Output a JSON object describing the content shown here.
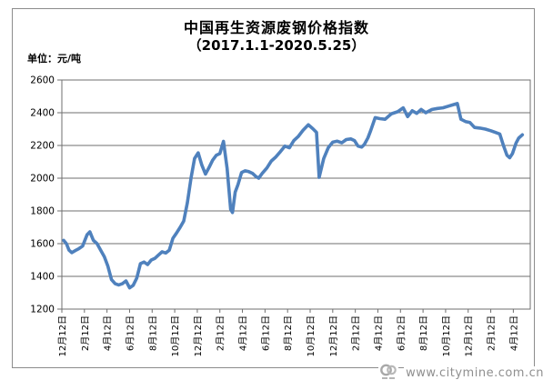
{
  "title": "中国再生资源废钢价格指数",
  "subtitle": "（2017.1.1-2020.5.25）",
  "unit_label": "单位：元/吨",
  "watermark": {
    "url_text": "www.citymine.com.cn",
    "logo_name": "citymine-logo"
  },
  "colors": {
    "line": "#4F81BD",
    "grid": "#6f6f6f",
    "plot_border": "#6f6f6f",
    "figure_border": "#8c8c8c",
    "axis_text": "#000000",
    "watermark_text": "#8f8f8f"
  },
  "chart_data": {
    "type": "line",
    "title": "中国再生资源废钢价格指数（2017.1.1-2020.5.25）",
    "xlabel": "",
    "ylabel": "元/吨",
    "ylim": [
      1200,
      2600
    ],
    "y_ticks": [
      1200,
      1400,
      1600,
      1800,
      2000,
      2200,
      2400,
      2600
    ],
    "grid": true,
    "legend": false,
    "x_range_months": [
      0,
      41.5
    ],
    "x_tick_months": [
      0,
      2,
      4,
      6,
      8,
      10,
      12,
      14,
      16,
      18,
      20,
      22,
      24,
      26,
      28,
      30,
      32,
      34,
      36,
      38,
      40
    ],
    "x_tick_labels": [
      "12月12日",
      "2月12日",
      "4月12日",
      "6月12日",
      "8月12日",
      "10月12日",
      "12月12日",
      "2月12日",
      "4月12日",
      "6月12日",
      "8月12日",
      "10月12日",
      "12月12日",
      "2月12日",
      "4月12日",
      "6月12日",
      "8月12日",
      "10月12日",
      "12月12日",
      "2月12日",
      "4月12日"
    ],
    "series": [
      {
        "name": "废钢价格指数",
        "points": [
          [
            0.16,
            1620
          ],
          [
            0.4,
            1600
          ],
          [
            0.64,
            1560
          ],
          [
            0.88,
            1545
          ],
          [
            1.2,
            1558
          ],
          [
            1.52,
            1570
          ],
          [
            1.84,
            1585
          ],
          [
            2.24,
            1655
          ],
          [
            2.48,
            1672
          ],
          [
            2.8,
            1620
          ],
          [
            3.12,
            1600
          ],
          [
            3.44,
            1560
          ],
          [
            3.76,
            1520
          ],
          [
            4.08,
            1462
          ],
          [
            4.4,
            1380
          ],
          [
            4.72,
            1355
          ],
          [
            5.04,
            1348
          ],
          [
            5.36,
            1355
          ],
          [
            5.68,
            1372
          ],
          [
            6.0,
            1330
          ],
          [
            6.32,
            1345
          ],
          [
            6.64,
            1390
          ],
          [
            6.96,
            1478
          ],
          [
            7.28,
            1488
          ],
          [
            7.6,
            1472
          ],
          [
            7.92,
            1500
          ],
          [
            8.24,
            1510
          ],
          [
            8.56,
            1530
          ],
          [
            8.88,
            1550
          ],
          [
            9.2,
            1543
          ],
          [
            9.52,
            1560
          ],
          [
            9.84,
            1633
          ],
          [
            10.16,
            1665
          ],
          [
            10.48,
            1700
          ],
          [
            10.8,
            1738
          ],
          [
            11.12,
            1850
          ],
          [
            11.44,
            2000
          ],
          [
            11.76,
            2120
          ],
          [
            12.08,
            2155
          ],
          [
            12.4,
            2080
          ],
          [
            12.72,
            2025
          ],
          [
            13.04,
            2065
          ],
          [
            13.36,
            2110
          ],
          [
            13.68,
            2140
          ],
          [
            14.0,
            2150
          ],
          [
            14.32,
            2225
          ],
          [
            14.64,
            2060
          ],
          [
            14.96,
            1810
          ],
          [
            15.12,
            1790
          ],
          [
            15.36,
            1915
          ],
          [
            15.6,
            1960
          ],
          [
            15.92,
            2035
          ],
          [
            16.24,
            2045
          ],
          [
            16.56,
            2040
          ],
          [
            16.88,
            2030
          ],
          [
            17.2,
            2010
          ],
          [
            17.44,
            2000
          ],
          [
            17.76,
            2030
          ],
          [
            18.16,
            2062
          ],
          [
            18.56,
            2105
          ],
          [
            18.96,
            2130
          ],
          [
            19.36,
            2162
          ],
          [
            19.76,
            2196
          ],
          [
            20.16,
            2186
          ],
          [
            20.56,
            2230
          ],
          [
            20.96,
            2256
          ],
          [
            21.36,
            2292
          ],
          [
            21.84,
            2326
          ],
          [
            22.24,
            2302
          ],
          [
            22.56,
            2280
          ],
          [
            22.8,
            2005
          ],
          [
            23.2,
            2120
          ],
          [
            23.6,
            2186
          ],
          [
            24.0,
            2220
          ],
          [
            24.4,
            2226
          ],
          [
            24.8,
            2216
          ],
          [
            25.2,
            2236
          ],
          [
            25.6,
            2240
          ],
          [
            25.92,
            2230
          ],
          [
            26.24,
            2196
          ],
          [
            26.56,
            2190
          ],
          [
            26.8,
            2206
          ],
          [
            27.12,
            2246
          ],
          [
            27.36,
            2290
          ],
          [
            27.76,
            2370
          ],
          [
            28.16,
            2364
          ],
          [
            28.64,
            2360
          ],
          [
            29.2,
            2394
          ],
          [
            29.76,
            2406
          ],
          [
            30.24,
            2430
          ],
          [
            30.64,
            2376
          ],
          [
            31.04,
            2412
          ],
          [
            31.44,
            2396
          ],
          [
            31.84,
            2420
          ],
          [
            32.24,
            2400
          ],
          [
            32.8,
            2420
          ],
          [
            33.28,
            2426
          ],
          [
            33.76,
            2430
          ],
          [
            34.24,
            2440
          ],
          [
            34.72,
            2450
          ],
          [
            35.04,
            2456
          ],
          [
            35.36,
            2360
          ],
          [
            35.76,
            2346
          ],
          [
            36.16,
            2340
          ],
          [
            36.56,
            2310
          ],
          [
            37.04,
            2306
          ],
          [
            37.52,
            2300
          ],
          [
            38.0,
            2290
          ],
          [
            38.4,
            2280
          ],
          [
            38.8,
            2270
          ],
          [
            39.12,
            2200
          ],
          [
            39.44,
            2140
          ],
          [
            39.68,
            2125
          ],
          [
            39.92,
            2150
          ],
          [
            40.24,
            2215
          ],
          [
            40.48,
            2245
          ],
          [
            40.8,
            2265
          ]
        ]
      }
    ]
  }
}
